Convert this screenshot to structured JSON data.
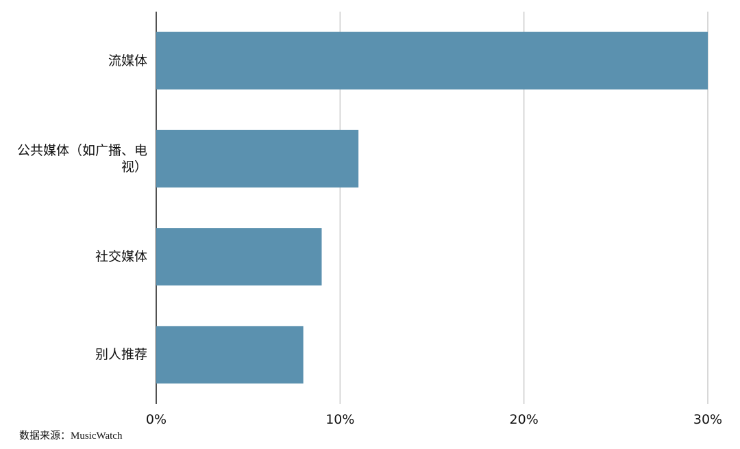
{
  "chart_data": {
    "type": "bar",
    "orientation": "horizontal",
    "categories": [
      "流媒体",
      "公共媒体（如广播、电视）",
      "社交媒体",
      "别人推荐"
    ],
    "values": [
      30,
      11,
      9,
      8
    ],
    "color": "#5b91af",
    "xlim": [
      0,
      30
    ],
    "xticks": [
      {
        "value": 0,
        "label": "0%"
      },
      {
        "value": 10,
        "label": "10%"
      },
      {
        "value": 20,
        "label": "20%"
      },
      {
        "value": 30,
        "label": "30%"
      }
    ],
    "grid": true,
    "source": "数据来源：MusicWatch"
  }
}
